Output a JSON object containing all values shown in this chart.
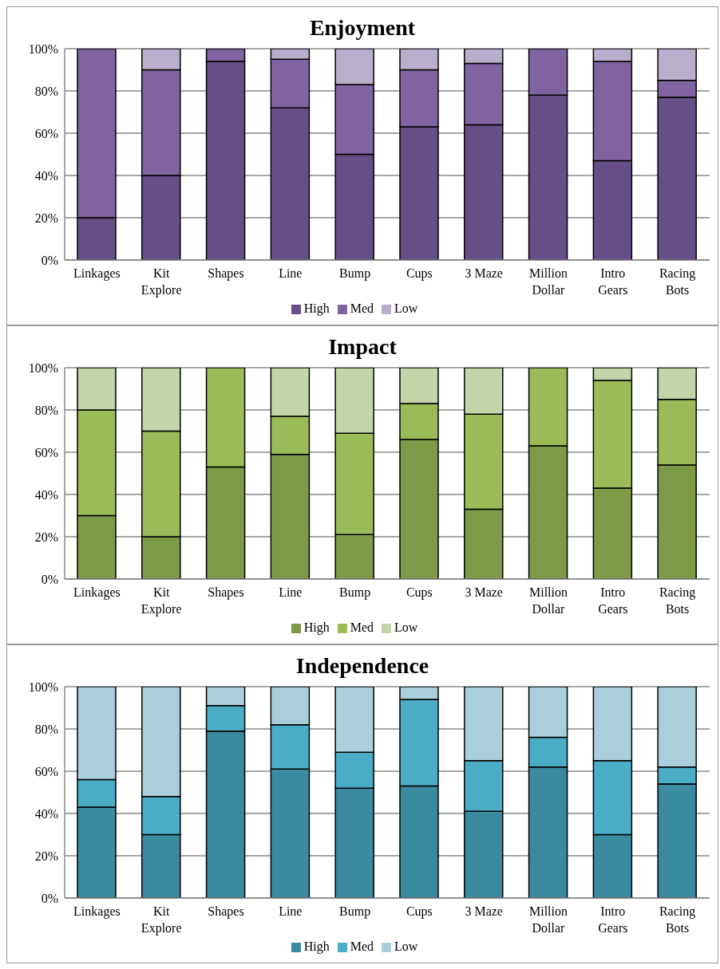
{
  "chart_data": [
    {
      "type": "bar",
      "title": "Enjoyment",
      "stacked": true,
      "grid": "y",
      "legend": "bottom",
      "categories": [
        "Linkages",
        "Kit Explore",
        "Shapes",
        "Line",
        "Bump",
        "Cups",
        "3 Maze",
        "Million Dollar",
        "Intro Gears",
        "Racing Bots"
      ],
      "ylim": [
        0,
        100
      ],
      "yticks": [
        {
          "value": 0,
          "label": "0%"
        },
        {
          "value": 20,
          "label": "20%"
        },
        {
          "value": 40,
          "label": "40%"
        },
        {
          "value": 60,
          "label": "60%"
        },
        {
          "value": 80,
          "label": "80%"
        },
        {
          "value": 100,
          "label": "100%"
        }
      ],
      "series": [
        {
          "name": "High",
          "color": "#664f86",
          "values": [
            20,
            40,
            94,
            72,
            50,
            63,
            64,
            78,
            47,
            77
          ]
        },
        {
          "name": "Med",
          "color": "#8064a2",
          "values": [
            80,
            50,
            6,
            23,
            33,
            27,
            29,
            22,
            47,
            8
          ]
        },
        {
          "name": "Low",
          "color": "#b9aecb",
          "values": [
            0,
            10,
            0,
            5,
            17,
            10,
            7,
            0,
            6,
            15
          ]
        }
      ]
    },
    {
      "type": "bar",
      "title": "Impact",
      "stacked": true,
      "grid": "y",
      "legend": "bottom",
      "categories": [
        "Linkages",
        "Kit Explore",
        "Shapes",
        "Line",
        "Bump",
        "Cups",
        "3 Maze",
        "Million Dollar",
        "Intro Gears",
        "Racing Bots"
      ],
      "ylim": [
        0,
        100
      ],
      "yticks": [
        {
          "value": 0,
          "label": "0%"
        },
        {
          "value": 20,
          "label": "20%"
        },
        {
          "value": 40,
          "label": "40%"
        },
        {
          "value": 60,
          "label": "60%"
        },
        {
          "value": 80,
          "label": "80%"
        },
        {
          "value": 100,
          "label": "100%"
        }
      ],
      "series": [
        {
          "name": "High",
          "color": "#7d9a48",
          "values": [
            30,
            20,
            53,
            59,
            21,
            66,
            33,
            63,
            43,
            54
          ]
        },
        {
          "name": "Med",
          "color": "#9bbb59",
          "values": [
            50,
            50,
            47,
            18,
            48,
            17,
            45,
            37,
            51,
            31
          ]
        },
        {
          "name": "Low",
          "color": "#c4d6a9",
          "values": [
            20,
            30,
            0,
            23,
            31,
            17,
            22,
            0,
            6,
            15
          ]
        }
      ]
    },
    {
      "type": "bar",
      "title": "Independence",
      "stacked": true,
      "grid": "y",
      "legend": "bottom",
      "categories": [
        "Linkages",
        "Kit Explore",
        "Shapes",
        "Line",
        "Bump",
        "Cups",
        "3 Maze",
        "Million Dollar",
        "Intro Gears",
        "Racing Bots"
      ],
      "ylim": [
        0,
        100
      ],
      "yticks": [
        {
          "value": 0,
          "label": "0%"
        },
        {
          "value": 20,
          "label": "20%"
        },
        {
          "value": 40,
          "label": "40%"
        },
        {
          "value": 60,
          "label": "60%"
        },
        {
          "value": 80,
          "label": "80%"
        },
        {
          "value": 100,
          "label": "100%"
        }
      ],
      "series": [
        {
          "name": "High",
          "color": "#3a8aa0",
          "values": [
            43,
            30,
            79,
            61,
            52,
            53,
            41,
            62,
            30,
            54
          ]
        },
        {
          "name": "Med",
          "color": "#4bacc6",
          "values": [
            13,
            18,
            12,
            21,
            17,
            41,
            24,
            14,
            35,
            8
          ]
        },
        {
          "name": "Low",
          "color": "#a9cfdc",
          "values": [
            44,
            52,
            9,
            18,
            31,
            6,
            35,
            24,
            35,
            38
          ]
        }
      ]
    }
  ]
}
